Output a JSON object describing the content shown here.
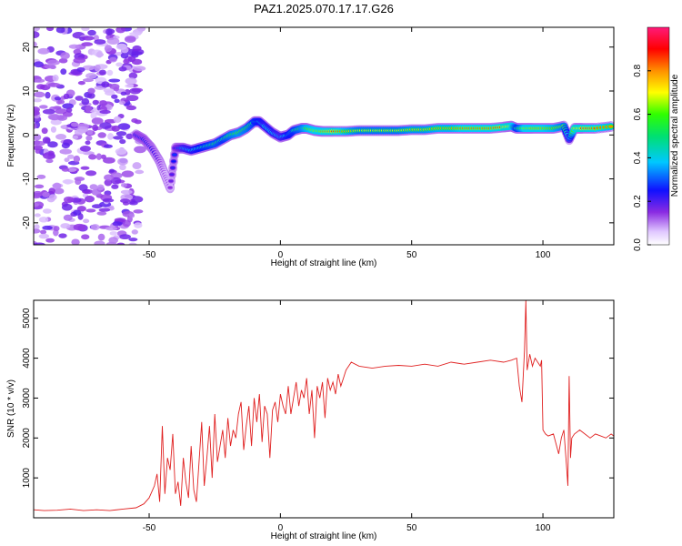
{
  "figure_title": "PAZ1.2025.070.17.17.G26",
  "colors": {
    "series_line": "#e02020",
    "axis": "#000000"
  },
  "chart_data": [
    {
      "type": "heatmap",
      "title": "PAZ1.2025.070.17.17.G26",
      "xlabel": "Height of straight line (km)",
      "ylabel": "Frequency (Hz)",
      "xlim": [
        -94,
        127
      ],
      "ylim": [
        -25,
        24.5
      ],
      "xticks": [
        -50,
        0,
        50,
        100
      ],
      "yticks": [
        -20,
        -10,
        0,
        10,
        20
      ],
      "colorbar": {
        "label": "Normalized spectral amplitude",
        "range": [
          0,
          1
        ],
        "ticks": [
          "0.0",
          "0.2",
          "0.4",
          "0.6",
          "0.8"
        ],
        "colormap": "rainbow"
      },
      "noise_region": {
        "x_range": [
          -94,
          -53
        ],
        "freq_range": [
          -25,
          24.5
        ],
        "amplitude": 0.15
      },
      "ridge": {
        "x": [
          -55,
          -52,
          -49,
          -46,
          -44,
          -42,
          -40,
          -37,
          -34,
          -31,
          -28,
          -25,
          -22,
          -19,
          -16,
          -13,
          -10,
          -8,
          -6,
          -3,
          0,
          3,
          5,
          8,
          10,
          13,
          16,
          20,
          25,
          30,
          35,
          40,
          45,
          50,
          55,
          60,
          65,
          70,
          75,
          80,
          85,
          88,
          90,
          93,
          96,
          100,
          104,
          108,
          110,
          112,
          115,
          120,
          127
        ],
        "freq": [
          0,
          -1,
          -3,
          -6,
          -9,
          -12,
          -3,
          -3,
          -3.5,
          -3,
          -2.5,
          -2,
          -1,
          0,
          0.5,
          1.5,
          3,
          3,
          2,
          0.5,
          -0.5,
          0,
          1,
          1.5,
          1.5,
          1,
          0.8,
          0.8,
          0.8,
          1,
          1,
          1,
          1,
          1.2,
          1.2,
          1.5,
          1.5,
          1.5,
          1.5,
          1.5,
          1.8,
          2,
          1.5,
          1.5,
          1.5,
          1.5,
          1.5,
          2,
          -1,
          1.5,
          1.5,
          1.5,
          2
        ],
        "amplitude": [
          0.3,
          0.3,
          0.25,
          0.2,
          0.15,
          0.15,
          0.3,
          0.45,
          0.5,
          0.55,
          0.6,
          0.65,
          0.6,
          0.7,
          0.75,
          0.7,
          0.6,
          0.55,
          0.5,
          0.5,
          0.45,
          0.55,
          0.6,
          0.7,
          0.8,
          0.85,
          0.85,
          0.9,
          0.8,
          0.7,
          0.7,
          0.7,
          0.7,
          0.75,
          0.75,
          0.8,
          0.8,
          0.85,
          0.85,
          0.85,
          0.9,
          0.9,
          0.6,
          0.85,
          0.85,
          0.85,
          0.8,
          0.7,
          0.4,
          0.9,
          0.9,
          0.85,
          0.8
        ]
      }
    },
    {
      "type": "line",
      "xlabel": "Height of straight line (km)",
      "ylabel": "SNR (10 * v/v)",
      "xlim": [
        -94,
        127
      ],
      "ylim": [
        0,
        5450
      ],
      "xticks": [
        -50,
        0,
        50,
        100
      ],
      "yticks": [
        1000,
        2000,
        3000,
        4000,
        5000
      ],
      "series": [
        {
          "x": [
            -94,
            -90,
            -85,
            -80,
            -75,
            -70,
            -65,
            -60,
            -55,
            -52,
            -50,
            -48,
            -47,
            -46,
            -45,
            -44,
            -43,
            -42,
            -41,
            -40,
            -39,
            -38,
            -37,
            -36,
            -35,
            -34,
            -33,
            -32,
            -31,
            -30,
            -29,
            -28,
            -27,
            -26,
            -25,
            -24,
            -23,
            -22,
            -21,
            -20,
            -19,
            -18,
            -17,
            -16,
            -15,
            -14,
            -13,
            -12,
            -11,
            -10,
            -9,
            -8,
            -7,
            -6,
            -5,
            -4,
            -3,
            -2,
            -1,
            0,
            1,
            2,
            3,
            4,
            5,
            6,
            7,
            8,
            9,
            10,
            11,
            12,
            13,
            14,
            15,
            16,
            17,
            18,
            19,
            20,
            21,
            22,
            23,
            24,
            25,
            27,
            30,
            35,
            40,
            45,
            50,
            55,
            60,
            65,
            70,
            75,
            80,
            85,
            88,
            90,
            91,
            92,
            93,
            93.5,
            94,
            95,
            96,
            97,
            98,
            99,
            99.5,
            100,
            101,
            102,
            104,
            106,
            107,
            108,
            109,
            109.5,
            110,
            110.5,
            111,
            112,
            114,
            116,
            118,
            120,
            122,
            124,
            126,
            127
          ],
          "y": [
            200,
            180,
            190,
            220,
            180,
            200,
            180,
            220,
            250,
            350,
            500,
            800,
            1100,
            400,
            2300,
            600,
            1500,
            1200,
            2100,
            600,
            900,
            300,
            1500,
            900,
            500,
            1800,
            700,
            400,
            1400,
            2400,
            800,
            1500,
            2300,
            1000,
            2600,
            1400,
            1800,
            2200,
            1500,
            2500,
            1800,
            2200,
            2000,
            2600,
            2900,
            1700,
            2300,
            2800,
            1800,
            3000,
            2400,
            3100,
            1900,
            2800,
            2600,
            1500,
            2700,
            2900,
            2400,
            3100,
            2800,
            2600,
            3300,
            2600,
            3000,
            3400,
            2800,
            3200,
            3000,
            3500,
            2600,
            3200,
            2000,
            3300,
            3000,
            3400,
            2500,
            3500,
            3200,
            3400,
            3100,
            3600,
            3300,
            3500,
            3700,
            3900,
            3800,
            3750,
            3800,
            3820,
            3800,
            3850,
            3800,
            3900,
            3850,
            3900,
            3950,
            3900,
            3950,
            4000,
            3300,
            2900,
            4200,
            5450,
            3700,
            4100,
            3800,
            4000,
            3900,
            3800,
            3950,
            2200,
            2100,
            2050,
            2100,
            1600,
            2000,
            2200,
            1300,
            800,
            3550,
            1500,
            2000,
            2100,
            2200,
            2100,
            2000,
            2100,
            2050,
            2000,
            2100,
            2050
          ]
        }
      ]
    }
  ]
}
